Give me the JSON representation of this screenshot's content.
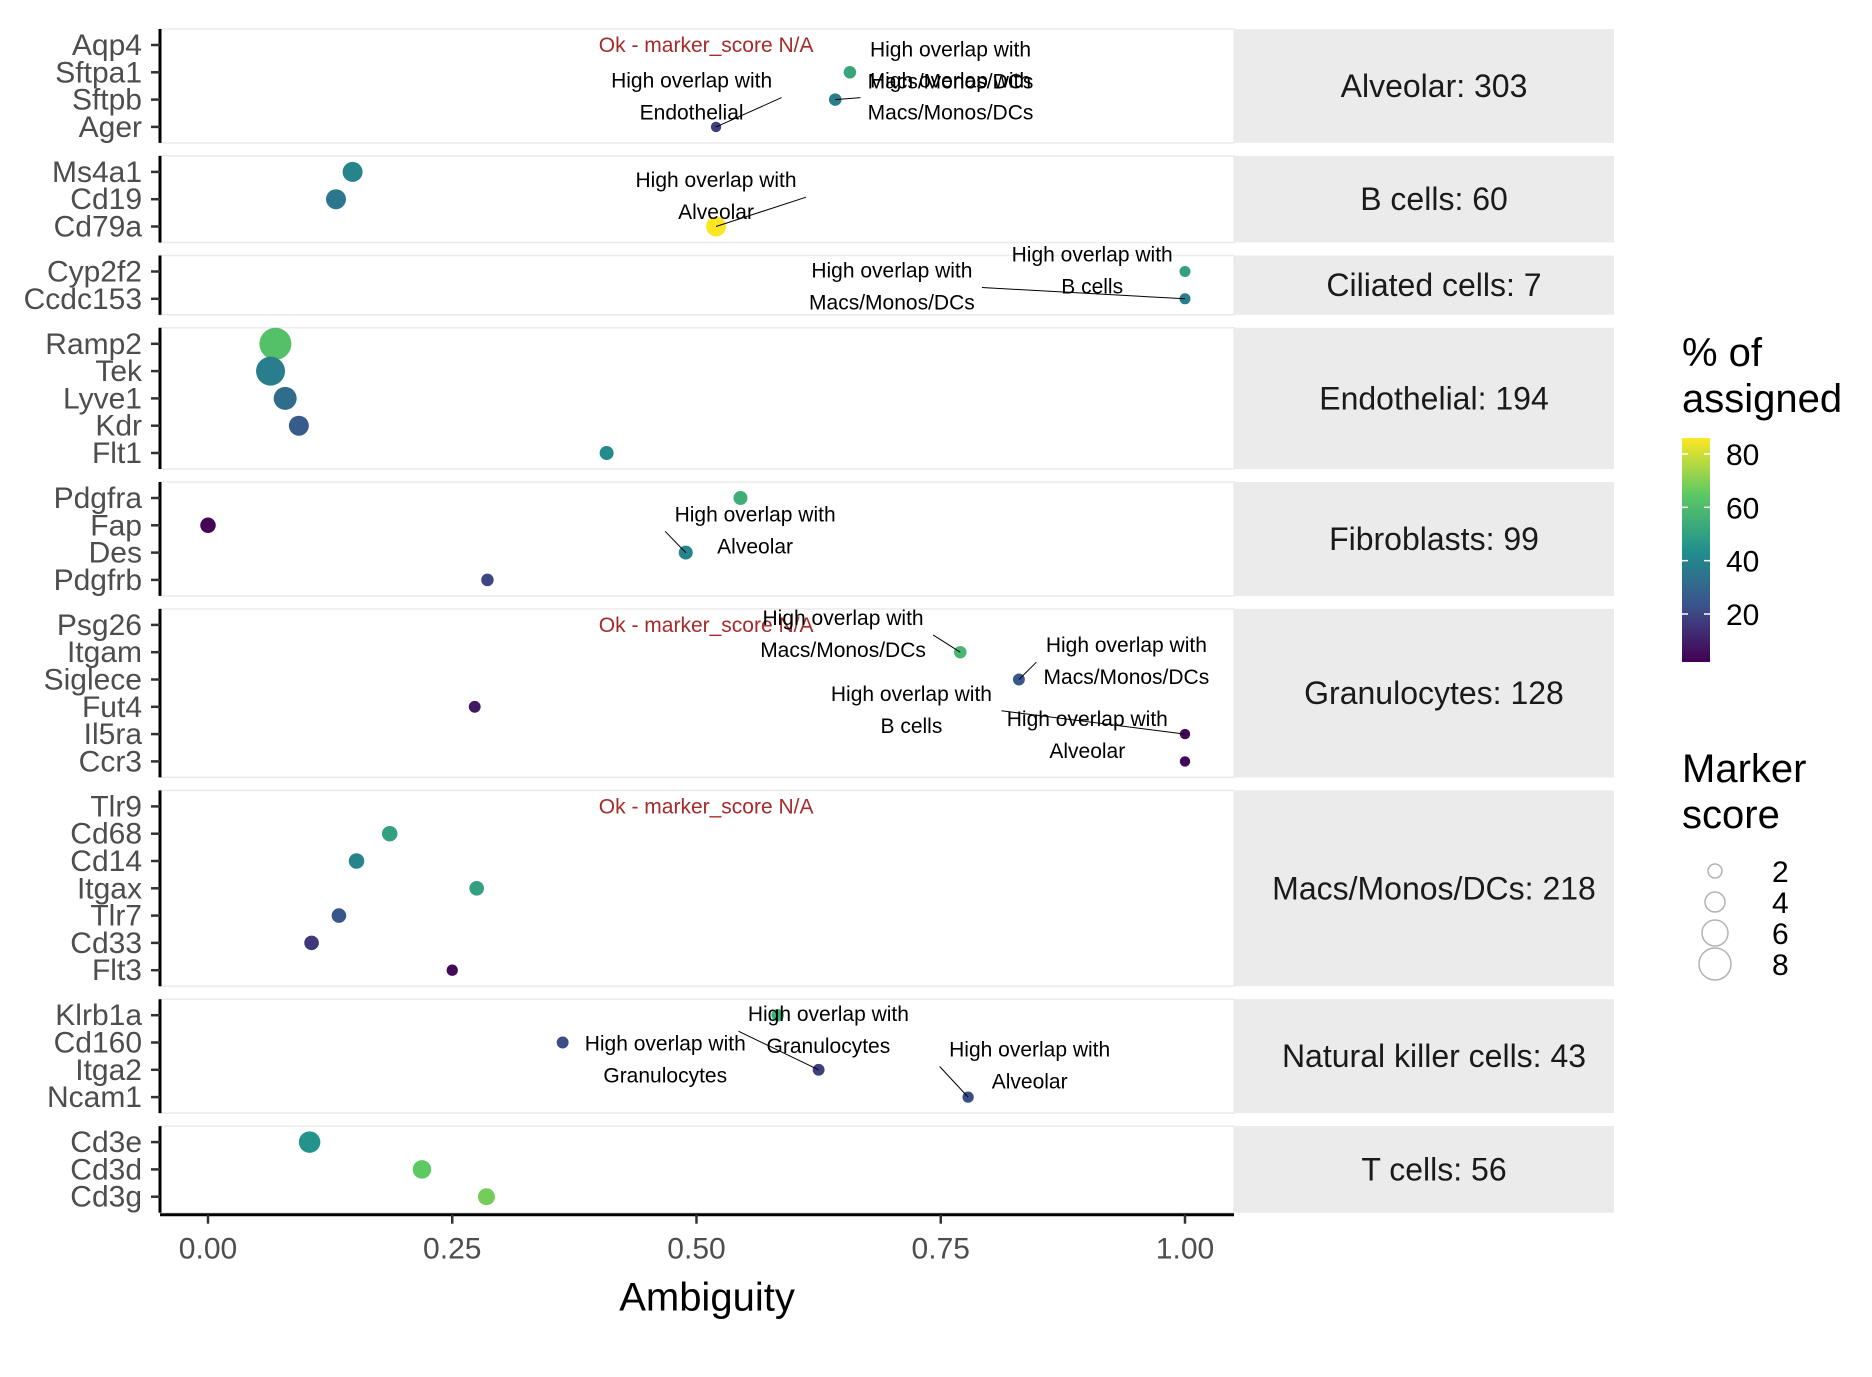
{
  "chart_data": {
    "type": "scatter",
    "xlabel": "Ambiguity",
    "xlim": [
      0,
      1
    ],
    "x_ticks": [
      0,
      0.25,
      0.5,
      0.75,
      1.0
    ],
    "x_tick_labels": [
      "0.00",
      "0.25",
      "0.50",
      "0.75",
      "1.00"
    ],
    "grid": false,
    "color_legend": {
      "title_lines": [
        "% of",
        "assigned"
      ],
      "ticks": [
        80,
        60,
        40,
        20
      ],
      "tick_labels": [
        "80",
        "60",
        "40",
        "20"
      ],
      "range": [
        2,
        86
      ],
      "colors": [
        "#440154",
        "#3b528b",
        "#21908d",
        "#5dc963",
        "#fde725"
      ],
      "placement": "right"
    },
    "size_legend": {
      "title_lines": [
        "Marker",
        "score"
      ],
      "values": [
        2,
        4,
        6,
        8
      ],
      "labels": [
        "2",
        "4",
        "6",
        "8"
      ],
      "placement": "right"
    },
    "panels": [
      {
        "strip": "Alveolar: 303",
        "genes": [
          "Aqp4",
          "Sftpa1",
          "Sftpb",
          "Ager"
        ],
        "points": [
          {
            "gene": "Sftpa1",
            "x": 0.657,
            "pct": 52,
            "score": 1.5
          },
          {
            "gene": "Sftpb",
            "x": 0.642,
            "pct": 38,
            "score": 1.5
          },
          {
            "gene": "Ager",
            "x": 0.52,
            "pct": 18,
            "score": 0.8
          }
        ],
        "annotations": [
          {
            "text": "Ok - marker_score N/A",
            "kind": "ok",
            "x": 0.4,
            "gene": "Aqp4"
          },
          {
            "lines": [
              "High overlap with",
              "Macs/Monos/DCs"
            ],
            "x": 0.76,
            "gene": "Sftpa1",
            "dy": -16,
            "target": "Sftpa1"
          },
          {
            "lines": [
              "High overlap with",
              "Macs/Monos/DCs"
            ],
            "x": 0.76,
            "gene": "Sftpb",
            "dy": -12,
            "target": "Sftpb"
          },
          {
            "lines": [
              "High overlap with",
              "Endothelial"
            ],
            "x": 0.495,
            "gene": "Sftpb",
            "dy": -12,
            "target": "Ager"
          }
        ]
      },
      {
        "strip": "B cells: 60",
        "genes": [
          "Ms4a1",
          "Cd19",
          "Cd79a"
        ],
        "points": [
          {
            "gene": "Ms4a1",
            "x": 0.148,
            "pct": 40,
            "score": 4
          },
          {
            "gene": "Cd19",
            "x": 0.131,
            "pct": 36,
            "score": 4
          },
          {
            "gene": "Cd79a",
            "x": 0.52,
            "pct": 86,
            "score": 4
          }
        ],
        "annotations": [
          {
            "lines": [
              "High overlap with",
              "Alveolar"
            ],
            "x": 0.52,
            "gene": "Cd19",
            "dy": -12,
            "target": "Cd79a"
          }
        ]
      },
      {
        "strip": "Ciliated cells: 7",
        "genes": [
          "Cyp2f2",
          "Ccdc153"
        ],
        "points": [
          {
            "gene": "Cyp2f2",
            "x": 1.0,
            "pct": 50,
            "score": 1
          },
          {
            "gene": "Ccdc153",
            "x": 1.0,
            "pct": 38,
            "score": 1
          }
        ],
        "annotations": [
          {
            "lines": [
              "High overlap with",
              "B cells"
            ],
            "x": 0.905,
            "gene": "Cyp2f2",
            "dy": -10,
            "target": "Ccdc153"
          },
          {
            "lines": [
              "High overlap with",
              "Macs/Monos/DCs"
            ],
            "x": 0.7,
            "gene": "Cyp2f2",
            "dy": 6,
            "target": "Ccdc153"
          }
        ]
      },
      {
        "strip": "Endothelial: 194",
        "genes": [
          "Ramp2",
          "Tek",
          "Lyve1",
          "Kdr",
          "Flt1"
        ],
        "points": [
          {
            "gene": "Ramp2",
            "x": 0.069,
            "pct": 62,
            "score": 8
          },
          {
            "gene": "Tek",
            "x": 0.064,
            "pct": 38,
            "score": 7
          },
          {
            "gene": "Lyve1",
            "x": 0.079,
            "pct": 32,
            "score": 5
          },
          {
            "gene": "Kdr",
            "x": 0.093,
            "pct": 26,
            "score": 4
          },
          {
            "gene": "Flt1",
            "x": 0.408,
            "pct": 42,
            "score": 2
          }
        ],
        "annotations": []
      },
      {
        "strip": "Fibroblasts: 99",
        "genes": [
          "Pdgfra",
          "Fap",
          "Des",
          "Pdgfrb"
        ],
        "points": [
          {
            "gene": "Pdgfra",
            "x": 0.545,
            "pct": 55,
            "score": 2
          },
          {
            "gene": "Fap",
            "x": 0.0,
            "pct": 3,
            "score": 2.5
          },
          {
            "gene": "Des",
            "x": 0.489,
            "pct": 40,
            "score": 2
          },
          {
            "gene": "Pdgfrb",
            "x": 0.286,
            "pct": 20,
            "score": 1.5
          }
        ],
        "annotations": [
          {
            "lines": [
              "High overlap with",
              "Alveolar"
            ],
            "x": 0.56,
            "gene": "Fap",
            "dy": -4,
            "target": "Des"
          }
        ]
      },
      {
        "strip": "Granulocytes: 128",
        "genes": [
          "Psg26",
          "Itgam",
          "Siglece",
          "Fut4",
          "Il5ra",
          "Ccr3"
        ],
        "points": [
          {
            "gene": "Itgam",
            "x": 0.77,
            "pct": 58,
            "score": 1.5
          },
          {
            "gene": "Siglece",
            "x": 0.83,
            "pct": 25,
            "score": 1.3
          },
          {
            "gene": "Fut4",
            "x": 0.273,
            "pct": 8,
            "score": 1.3
          },
          {
            "gene": "Il5ra",
            "x": 1.0,
            "pct": 4,
            "score": 0.8
          },
          {
            "gene": "Ccr3",
            "x": 1.0,
            "pct": 4,
            "score": 0.8
          }
        ],
        "annotations": [
          {
            "text": "Ok - marker_score N/A",
            "kind": "ok",
            "x": 0.4,
            "gene": "Psg26"
          },
          {
            "lines": [
              "High overlap with",
              "Macs/Monos/DCs"
            ],
            "x": 0.65,
            "gene": "Psg26",
            "dy": 0,
            "target": "Itgam"
          },
          {
            "lines": [
              "High overlap with",
              "Macs/Monos/DCs"
            ],
            "x": 0.94,
            "gene": "Itgam",
            "dy": 0,
            "target": "Siglece"
          },
          {
            "lines": [
              "High overlap with",
              "B cells"
            ],
            "x": 0.72,
            "gene": "Fut4",
            "dy": -6,
            "target": "Il5ra"
          },
          {
            "lines": [
              "High overlap with",
              "Alveolar"
            ],
            "x": 0.9,
            "gene": "Il5ra",
            "dy": -8,
            "target": "Ccr3"
          }
        ]
      },
      {
        "strip": "Macs/Monos/DCs: 218",
        "genes": [
          "Tlr9",
          "Cd68",
          "Cd14",
          "Itgax",
          "Tlr7",
          "Cd33",
          "Flt3"
        ],
        "points": [
          {
            "gene": "Cd68",
            "x": 0.186,
            "pct": 50,
            "score": 2.5
          },
          {
            "gene": "Cd14",
            "x": 0.152,
            "pct": 40,
            "score": 2.5
          },
          {
            "gene": "Itgax",
            "x": 0.275,
            "pct": 50,
            "score": 2.2
          },
          {
            "gene": "Tlr7",
            "x": 0.134,
            "pct": 24,
            "score": 2.2
          },
          {
            "gene": "Cd33",
            "x": 0.106,
            "pct": 16,
            "score": 2.2
          },
          {
            "gene": "Flt3",
            "x": 0.25,
            "pct": 4,
            "score": 1.1
          }
        ],
        "annotations": [
          {
            "text": "Ok - marker_score N/A",
            "kind": "ok",
            "x": 0.4,
            "gene": "Tlr9"
          }
        ]
      },
      {
        "strip": "Natural killer cells: 43",
        "genes": [
          "Klrb1a",
          "Cd160",
          "Itga2",
          "Ncam1"
        ],
        "points": [
          {
            "gene": "Klrb1a",
            "x": 0.583,
            "pct": 55,
            "score": 1.5
          },
          {
            "gene": "Cd160",
            "x": 0.363,
            "pct": 22,
            "score": 1.3
          },
          {
            "gene": "Itga2",
            "x": 0.625,
            "pct": 18,
            "score": 1.3
          },
          {
            "gene": "Ncam1",
            "x": 0.778,
            "pct": 22,
            "score": 1.1
          }
        ],
        "annotations": [
          {
            "lines": [
              "High overlap with",
              "Granulocytes"
            ],
            "x": 0.635,
            "gene": "Klrb1a",
            "dy": 6,
            "target": "Itga2"
          },
          {
            "lines": [
              "High overlap with",
              "Granulocytes"
            ],
            "x": 0.468,
            "gene": "Cd160",
            "dy": 8,
            "target": "Cd160"
          },
          {
            "lines": [
              "High overlap with",
              "Alveolar"
            ],
            "x": 0.841,
            "gene": "Cd160",
            "dy": 14,
            "target": "Ncam1"
          }
        ]
      },
      {
        "strip": "T cells: 56",
        "genes": [
          "Cd3e",
          "Cd3d",
          "Cd3g"
        ],
        "points": [
          {
            "gene": "Cd3e",
            "x": 0.104,
            "pct": 45,
            "score": 4.5
          },
          {
            "gene": "Cd3d",
            "x": 0.219,
            "pct": 65,
            "score": 3.5
          },
          {
            "gene": "Cd3g",
            "x": 0.285,
            "pct": 68,
            "score": 3
          }
        ],
        "annotations": []
      }
    ]
  }
}
